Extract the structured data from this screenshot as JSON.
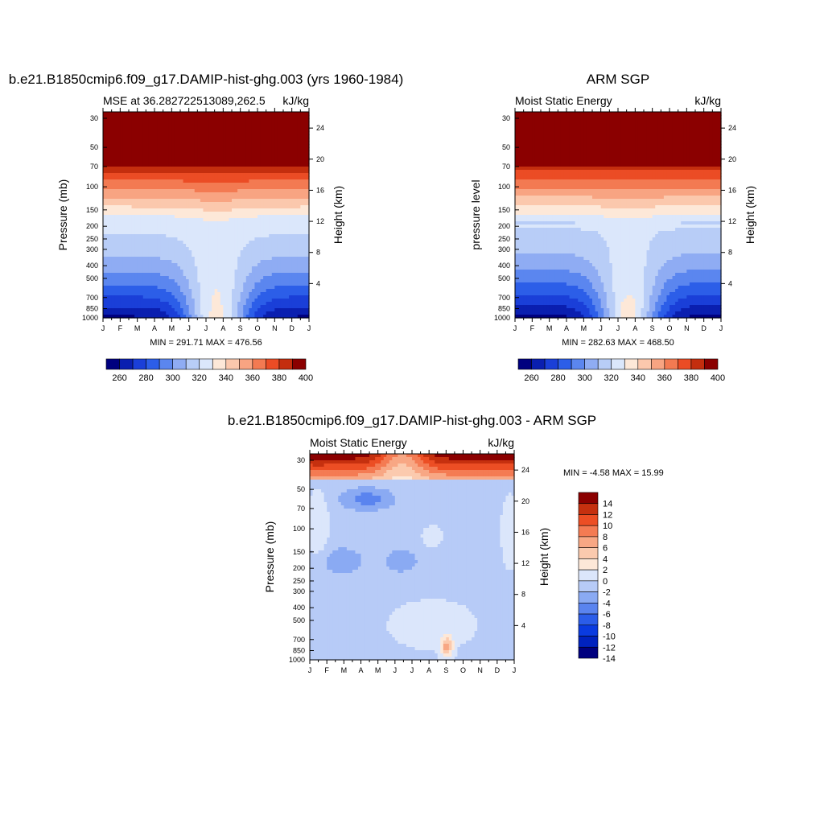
{
  "panels": [
    {
      "id": "model",
      "title": "b.e21.B1850cmip6.f09_g17.DAMIP-hist-ghg.003 (yrs 1960-1984)",
      "left_string": "MSE at 36.282722513089,262.5",
      "right_string": "kJ/kg",
      "ylabel": "Pressure (mb)",
      "ylabel_right": "Height (km)",
      "minmax": "MIN = 291.71 MAX = 476.56"
    },
    {
      "id": "obs",
      "title": "ARM SGP",
      "left_string": "Moist Static Energy",
      "right_string": "kJ/kg",
      "ylabel": "pressure level",
      "ylabel_right": "Height (km)",
      "minmax": "MIN = 282.63 MAX = 468.50"
    },
    {
      "id": "diff",
      "title": "b.e21.B1850cmip6.f09_g17.DAMIP-hist-ghg.003 - ARM SGP",
      "left_string": "Moist Static Energy",
      "right_string": "kJ/kg",
      "ylabel": "Pressure (mb)",
      "ylabel_right": "Height (km)",
      "minmax": "MIN =  -4.58 MAX =  15.99"
    }
  ],
  "chart_data": [
    {
      "type": "heatmap",
      "title": "b.e21.B1850cmip6.f09_g17.DAMIP-hist-ghg.003 (yrs 1960-1984)",
      "variable": "MSE at 36.282722513089,262.5",
      "units": "kJ/kg",
      "x": [
        "J",
        "F",
        "M",
        "A",
        "M",
        "J",
        "J",
        "A",
        "S",
        "O",
        "N",
        "D",
        "J"
      ],
      "y_ticks": [
        30,
        50,
        70,
        100,
        150,
        200,
        250,
        300,
        400,
        500,
        700,
        850,
        1000
      ],
      "y_right_ticks": [
        4,
        8,
        12,
        16,
        20,
        24
      ],
      "ylabel": "Pressure (mb)",
      "ylabel_right": "Height (km)",
      "min": 291.71,
      "max": 476.56,
      "colorbar_levels": [
        260,
        270,
        280,
        290,
        300,
        310,
        320,
        330,
        340,
        350,
        360,
        370,
        380,
        390,
        400
      ],
      "colorbar_labels": [
        "260",
        "280",
        "300",
        "320",
        "340",
        "360",
        "380",
        "400"
      ]
    },
    {
      "type": "heatmap",
      "title": "ARM SGP",
      "variable": "Moist Static Energy",
      "units": "kJ/kg",
      "x": [
        "J",
        "F",
        "M",
        "A",
        "M",
        "J",
        "J",
        "A",
        "S",
        "O",
        "N",
        "D",
        "J"
      ],
      "y_ticks": [
        30,
        50,
        70,
        100,
        150,
        200,
        250,
        300,
        400,
        500,
        700,
        850,
        1000
      ],
      "y_right_ticks": [
        4,
        8,
        12,
        16,
        20,
        24
      ],
      "ylabel": "pressure level",
      "ylabel_right": "Height (km)",
      "min": 282.63,
      "max": 468.5,
      "colorbar_levels": [
        260,
        270,
        280,
        290,
        300,
        310,
        320,
        330,
        340,
        350,
        360,
        370,
        380,
        390,
        400
      ],
      "colorbar_labels": [
        "260",
        "280",
        "300",
        "320",
        "340",
        "360",
        "380",
        "400"
      ]
    },
    {
      "type": "heatmap",
      "title": "b.e21.B1850cmip6.f09_g17.DAMIP-hist-ghg.003 - ARM SGP",
      "variable": "Moist Static Energy",
      "units": "kJ/kg",
      "x": [
        "J",
        "F",
        "M",
        "A",
        "M",
        "J",
        "J",
        "A",
        "S",
        "O",
        "N",
        "D",
        "J"
      ],
      "y_ticks": [
        30,
        50,
        70,
        100,
        150,
        200,
        250,
        300,
        400,
        500,
        700,
        850,
        1000
      ],
      "y_right_ticks": [
        4,
        8,
        12,
        16,
        20,
        24
      ],
      "ylabel": "Pressure (mb)",
      "ylabel_right": "Height (km)",
      "min": -4.58,
      "max": 15.99,
      "colorbar_levels": [
        -14,
        -12,
        -10,
        -8,
        -6,
        -4,
        -2,
        0,
        2,
        4,
        6,
        8,
        10,
        12,
        14
      ],
      "colorbar_labels": [
        "14",
        "12",
        "10",
        "8",
        "6",
        "4",
        "2",
        "0",
        "-2",
        "-4",
        "-6",
        "-8",
        "-10",
        "-12",
        "-14"
      ]
    }
  ],
  "colors": {
    "palette": [
      "#00007f",
      "#0a1fb0",
      "#1a3fd8",
      "#2c5ee8",
      "#5b86ef",
      "#8facf3",
      "#b8cdf7",
      "#dbe7fb",
      "#fde8d8",
      "#fbc8ad",
      "#f8a482",
      "#f37a52",
      "#eb4c25",
      "#c42e0e",
      "#8b0000"
    ],
    "diff_palette": [
      "#00007f",
      "#0022bf",
      "#0a3be0",
      "#2b5de9",
      "#5a84ef",
      "#8aaaf3",
      "#b7cbf7",
      "#dbe6fb",
      "#fde8d8",
      "#fbcaae",
      "#f8a784",
      "#f47b53",
      "#ec4e24",
      "#c5300f",
      "#8b0000"
    ]
  }
}
